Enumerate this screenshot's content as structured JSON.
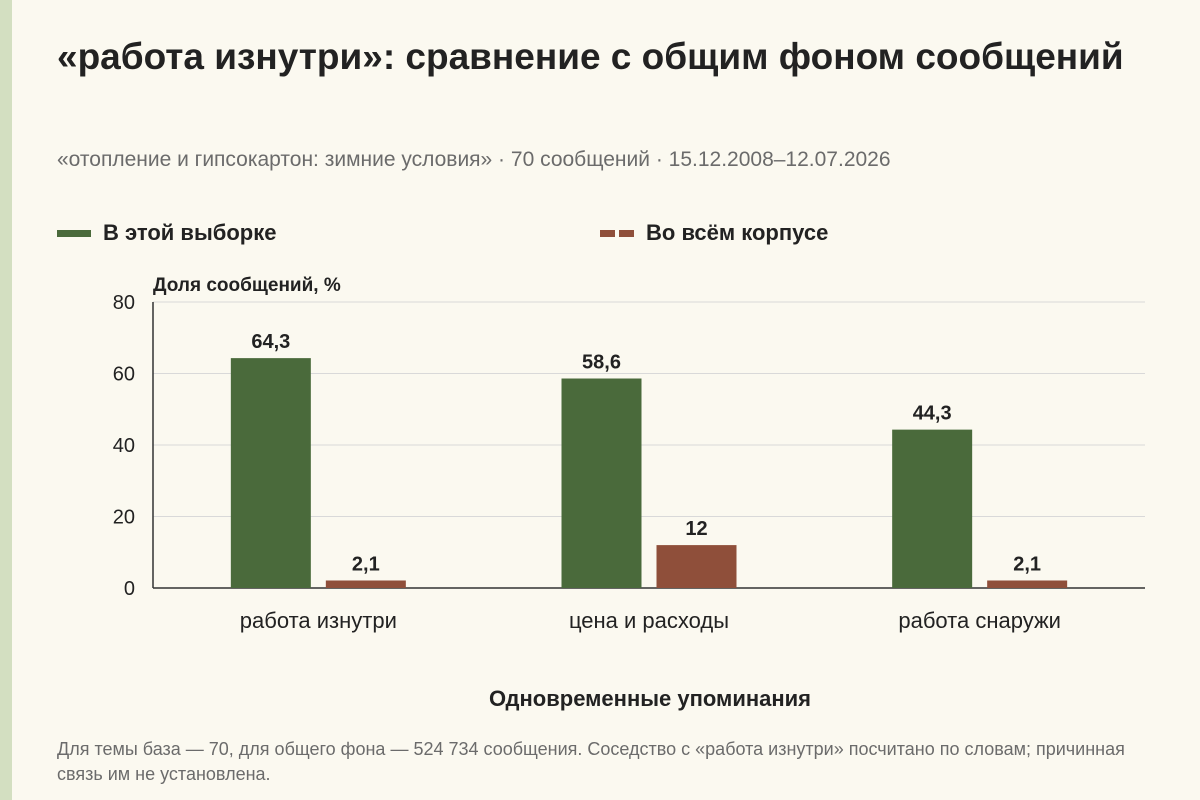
{
  "title": "«работа изнутри»: сравнение с общим фоном сообщений",
  "subtitle": "«отопление и гипсокартон: зимние условия» · 70 сообщений · 15.12.2008–12.07.2026",
  "footnote": "Для темы база — 70, для общего фона — 524 734 сообщения. Соседство с «работа изнутри» посчитано по словам; причинная связь им не установлена.",
  "colors": {
    "series_sample": "#4a6a3b",
    "series_corpus": "#8f4f3a",
    "grid": "#d9d9d9",
    "axis": "#333333"
  },
  "chart_data": {
    "type": "bar",
    "ylabel": "Доля сообщений, %",
    "xlabel": "Одновременные упоминания",
    "ylim": [
      0,
      80
    ],
    "yticks": [
      0,
      20,
      40,
      60,
      80
    ],
    "grid": true,
    "legend_position": "top",
    "categories": [
      "работа изнутри",
      "цена и расходы",
      "работа снаружи"
    ],
    "series": [
      {
        "name": "В этой выборке",
        "values": [
          64.3,
          58.6,
          44.3
        ],
        "labels": [
          "64,3",
          "58,6",
          "44,3"
        ]
      },
      {
        "name": "Во всём корпусе",
        "values": [
          2.1,
          12,
          2.1
        ],
        "labels": [
          "2,1",
          "12",
          "2,1"
        ]
      }
    ]
  }
}
